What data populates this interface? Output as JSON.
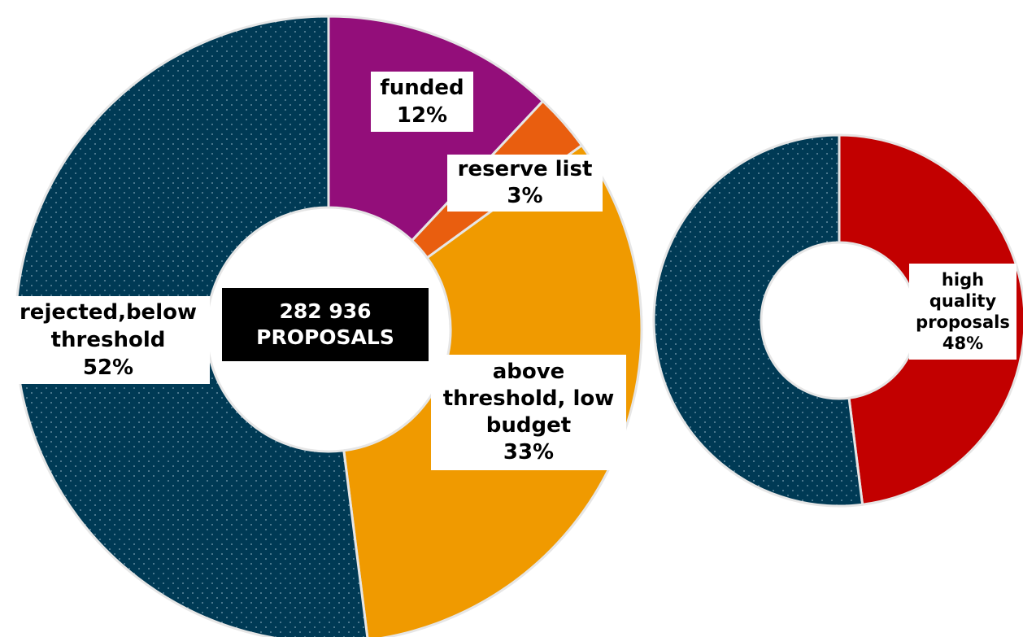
{
  "chart_data": [
    {
      "type": "pie",
      "variant": "donut",
      "total_label": [
        "282 936",
        "PROPOSALS"
      ],
      "slices": [
        {
          "label_lines": [
            "funded"
          ],
          "value": 12,
          "value_label": "12%",
          "color": "#930E7A",
          "pattern": false
        },
        {
          "label_lines": [
            "reserve list"
          ],
          "value": 3,
          "value_label": "3%",
          "color": "#E95E0F",
          "pattern": false
        },
        {
          "label_lines": [
            "above",
            "threshold, low",
            "budget"
          ],
          "value": 33,
          "value_label": "33%",
          "color": "#F09A00",
          "pattern": false
        },
        {
          "label_lines": [
            "rejected,below",
            "threshold"
          ],
          "value": 52,
          "value_label": "52%",
          "color": "#003A55",
          "pattern": true
        }
      ]
    },
    {
      "type": "pie",
      "variant": "donut",
      "slices": [
        {
          "label_lines": [
            "high",
            "quality",
            "proposals"
          ],
          "value": 48,
          "value_label": "48%",
          "color": "#C20000",
          "pattern": false
        },
        {
          "label_lines": [],
          "value": 52,
          "value_label": "",
          "color": "#003A55",
          "pattern": true
        }
      ]
    }
  ]
}
